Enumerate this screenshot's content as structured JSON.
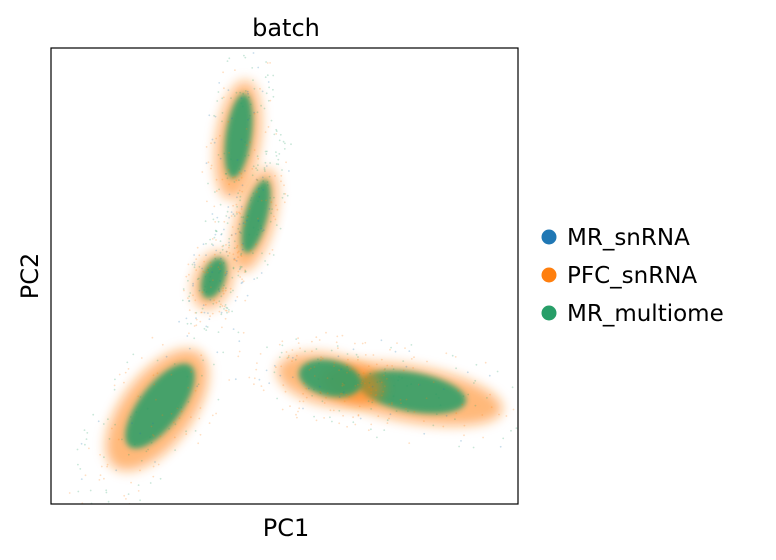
{
  "chart_data": {
    "type": "scatter",
    "title": "batch",
    "xlabel": "PC1",
    "ylabel": "PC2",
    "grid": false,
    "legend_position": "right",
    "series": [
      {
        "name": "MR_snRNA",
        "color": "#1f77b4"
      },
      {
        "name": "PFC_snRNA",
        "color": "#ff7f0e"
      },
      {
        "name": "MR_multiome",
        "color": "#279e68"
      }
    ]
  }
}
